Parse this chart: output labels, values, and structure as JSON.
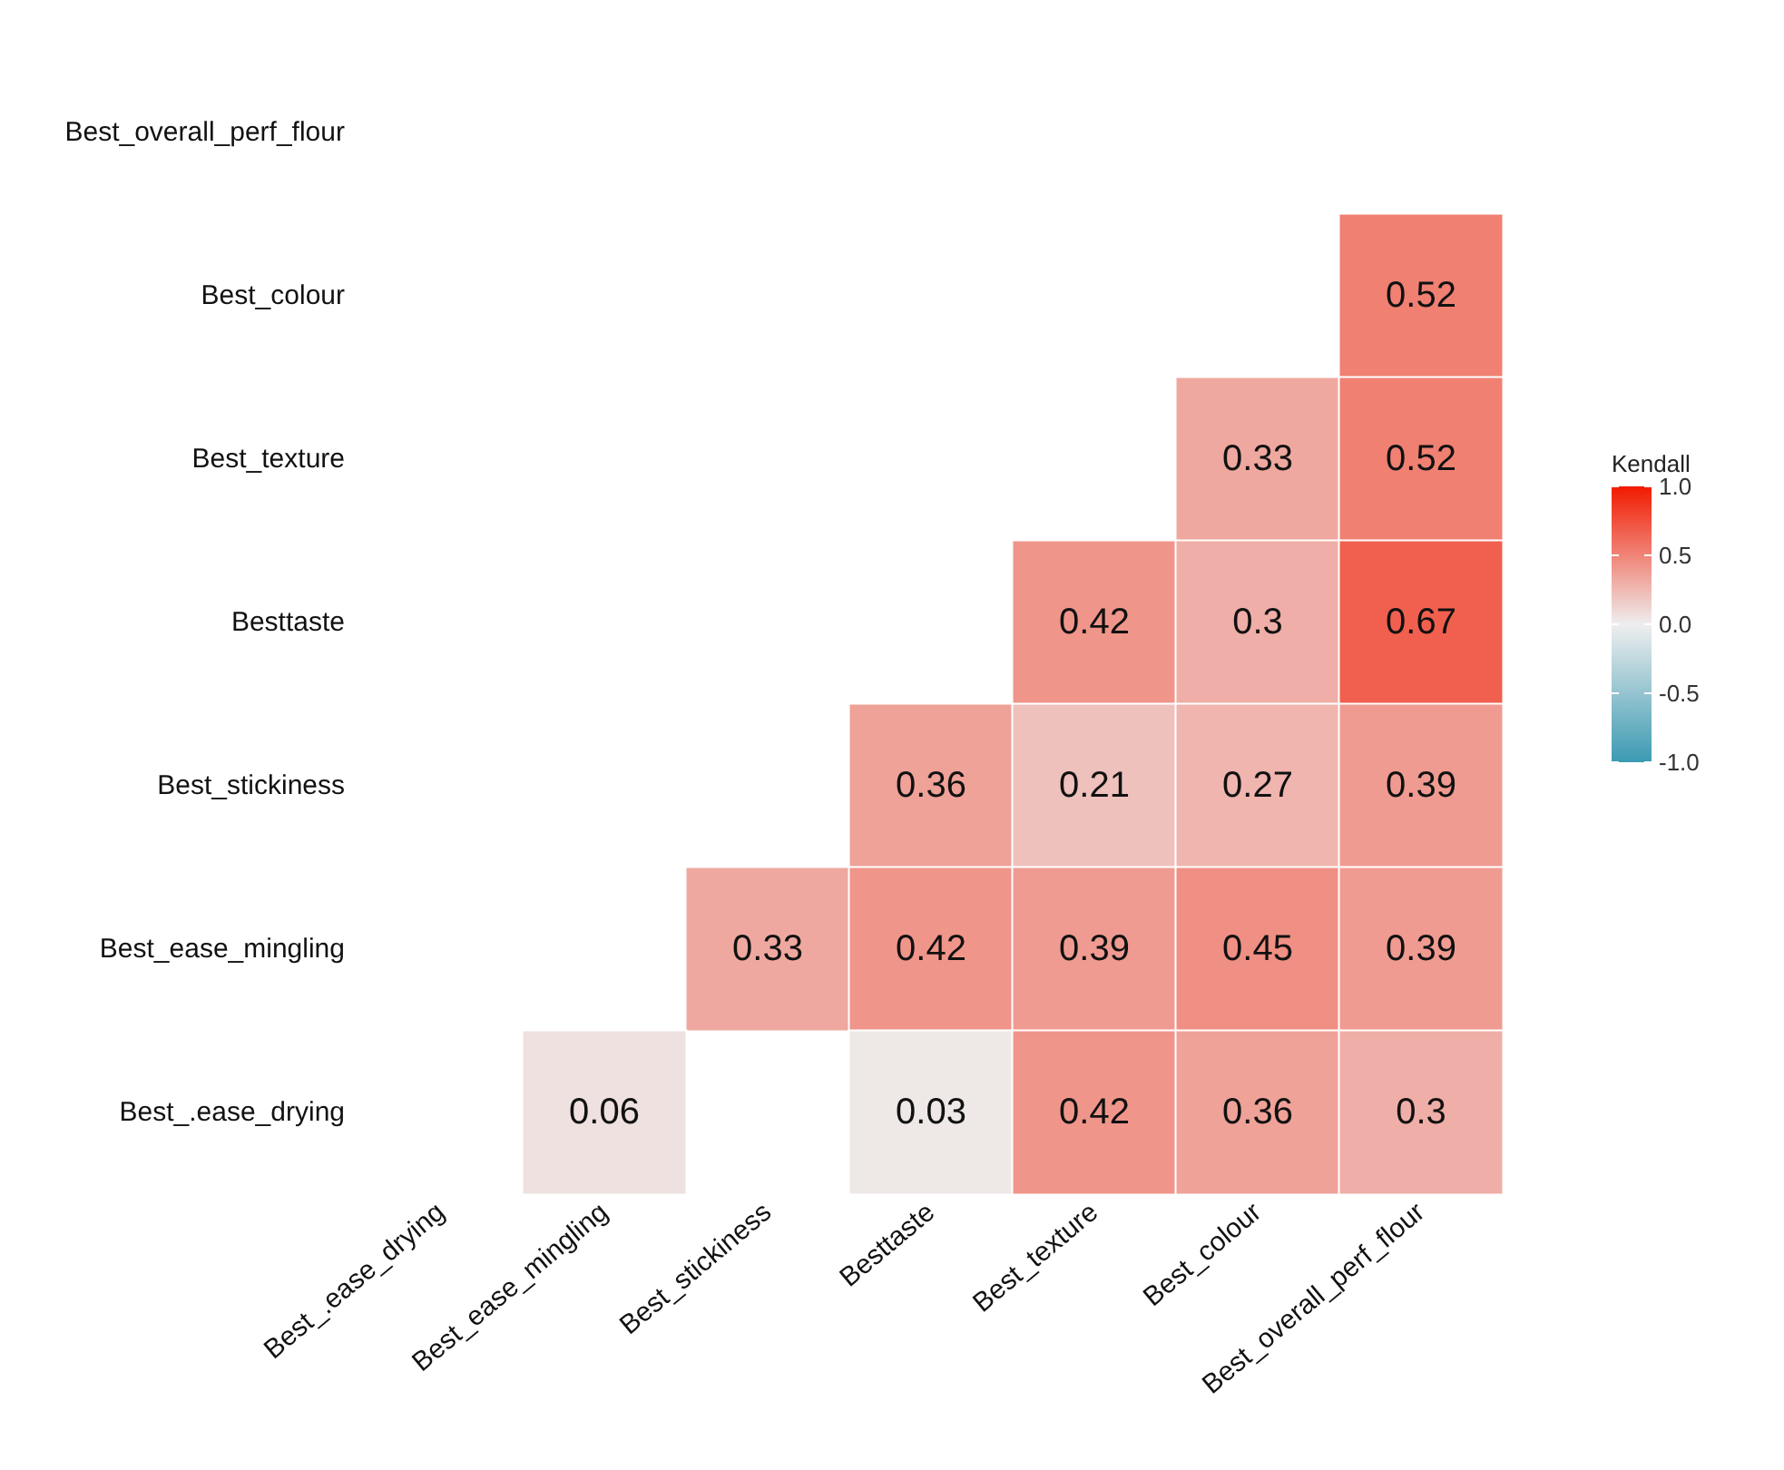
{
  "chart_data": {
    "type": "heatmap",
    "categories": [
      "Best_.ease_drying",
      "Best_ease_mingling",
      "Best_stickiness",
      "Besttaste",
      "Best_texture",
      "Best_colour",
      "Best_overall_perf_flour"
    ],
    "y_categories": [
      "Best_overall_perf_flour",
      "Best_colour",
      "Best_texture",
      "Besttaste",
      "Best_stickiness",
      "Best_ease_mingling",
      "Best_.ease_drying"
    ],
    "cells": [
      [
        null,
        null,
        null,
        null,
        null,
        null,
        null
      ],
      [
        null,
        null,
        null,
        null,
        null,
        null,
        0.52
      ],
      [
        null,
        null,
        null,
        null,
        null,
        0.33,
        0.52
      ],
      [
        null,
        null,
        null,
        null,
        0.42,
        0.3,
        0.67
      ],
      [
        null,
        null,
        null,
        0.36,
        0.21,
        0.27,
        0.39
      ],
      [
        null,
        null,
        0.33,
        0.42,
        0.39,
        0.45,
        0.39
      ],
      [
        null,
        0.06,
        null,
        0.03,
        0.42,
        0.36,
        0.3
      ]
    ],
    "data_labels": true,
    "clabel": "Kendall",
    "clim": [
      -1,
      1
    ],
    "cticks": [
      {
        "value": -1,
        "label": "-1.0"
      },
      {
        "value": -0.5,
        "label": "-0.5"
      },
      {
        "value": 0,
        "label": "0.0"
      },
      {
        "value": 0.5,
        "label": "0.5"
      },
      {
        "value": 1,
        "label": "1.0"
      }
    ]
  }
}
